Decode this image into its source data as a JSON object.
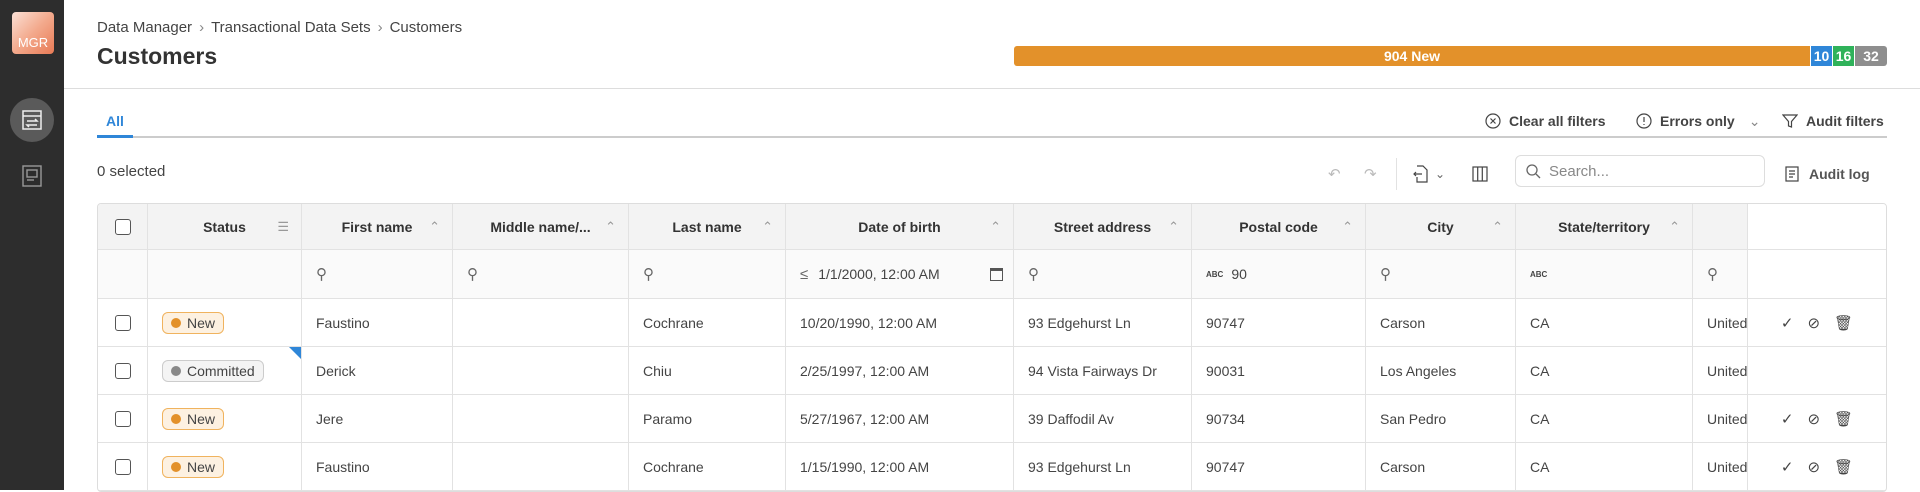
{
  "app": {
    "logo": "MGR"
  },
  "breadcrumb": [
    "Data Manager",
    "Transactional Data Sets",
    "Customers"
  ],
  "title": "Customers",
  "status_bar": [
    {
      "label": "904 New",
      "value": 904,
      "color": "#e3912a"
    },
    {
      "label": "10",
      "value": 10,
      "color": "#2f86d8"
    },
    {
      "label": "16",
      "value": 16,
      "color": "#2fb25a"
    },
    {
      "label": "32",
      "value": 32,
      "color": "#8e8e8e"
    }
  ],
  "tabs": [
    {
      "label": "All",
      "active": true
    }
  ],
  "filters": {
    "clear": "Clear all filters",
    "errors": "Errors only",
    "audit": "Audit filters"
  },
  "toolbar": {
    "selected": "0 selected",
    "search_placeholder": "Search...",
    "audit_log": "Audit log"
  },
  "table": {
    "columns": [
      "Status",
      "First name",
      "Middle name/...",
      "Last name",
      "Date of birth",
      "Street address",
      "Postal code",
      "City",
      "State/territory"
    ],
    "filters": {
      "dob": "1/1/2000, 12:00 AM",
      "postal": "90"
    },
    "rows": [
      {
        "status": "New",
        "first": "Faustino",
        "middle": "",
        "last": "Cochrane",
        "dob": "10/20/1990, 12:00 AM",
        "street": "93 Edgehurst Ln",
        "postal": "90747",
        "city": "Carson",
        "state": "CA",
        "country": "United",
        "actions": true
      },
      {
        "status": "Committed",
        "first": "Derick",
        "middle": "",
        "last": "Chiu",
        "dob": "2/25/1997, 12:00 AM",
        "street": "94 Vista Fairways Dr",
        "postal": "90031",
        "city": "Los Angeles",
        "state": "CA",
        "country": "United",
        "actions": false
      },
      {
        "status": "New",
        "first": "Jere",
        "middle": "",
        "last": "Paramo",
        "dob": "5/27/1967, 12:00 AM",
        "street": "39 Daffodil Av",
        "postal": "90734",
        "city": "San Pedro",
        "state": "CA",
        "country": "United",
        "actions": true
      },
      {
        "status": "New",
        "first": "Faustino",
        "middle": "",
        "last": "Cochrane",
        "dob": "1/15/1990, 12:00 AM",
        "street": "93 Edgehurst Ln",
        "postal": "90747",
        "city": "Carson",
        "state": "CA",
        "country": "United",
        "actions": true
      }
    ]
  },
  "colors": {
    "new_dot": "#e3912a",
    "committed_dot": "#888888",
    "accent": "#2f86d8"
  }
}
